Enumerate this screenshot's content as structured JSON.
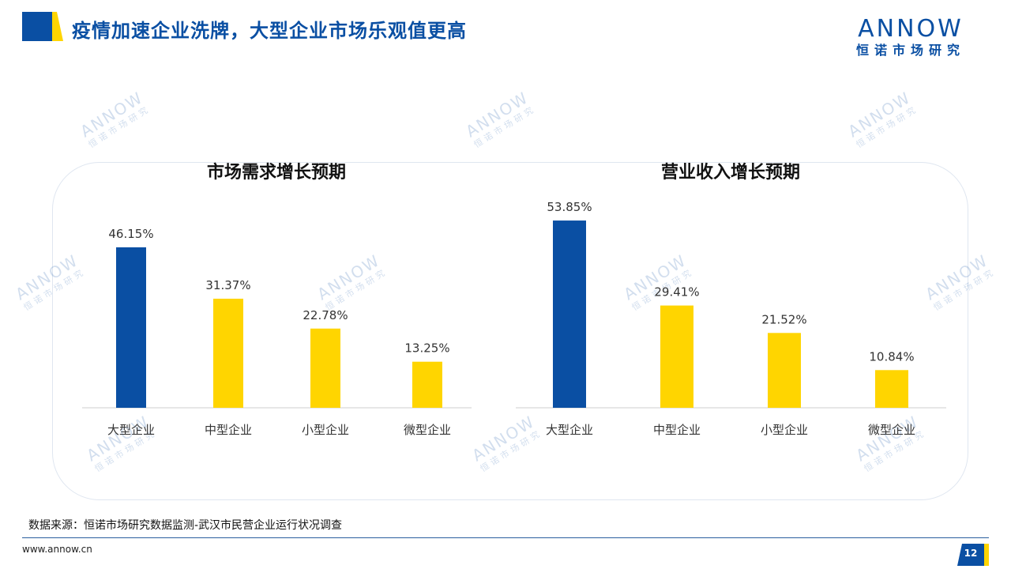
{
  "header": {
    "title": "疫情加速企业洗牌，大型企业市场乐观值更高",
    "accent_colors": [
      "#0a4fa3",
      "#ffd500"
    ]
  },
  "brand": {
    "logo_word": "ANNOW",
    "logo_sub": "恒诺市场研究"
  },
  "watermark": {
    "word": "ANNOW",
    "sub": "恒诺市场研究"
  },
  "chart_data": [
    {
      "type": "bar",
      "title": "市场需求增长预期",
      "categories": [
        "大型企业",
        "中型企业",
        "小型企业",
        "微型企业"
      ],
      "values": [
        46.15,
        31.37,
        22.78,
        13.25
      ],
      "value_labels": [
        "46.15%",
        "31.37%",
        "22.78%",
        "13.25%"
      ],
      "colors": [
        "#0a4fa3",
        "#ffd500",
        "#ffd500",
        "#ffd500"
      ],
      "ylim": [
        0,
        55
      ],
      "grid": false,
      "legend": "none"
    },
    {
      "type": "bar",
      "title": "营业收入增长预期",
      "categories": [
        "大型企业",
        "中型企业",
        "小型企业",
        "微型企业"
      ],
      "values": [
        53.85,
        29.41,
        21.52,
        10.84
      ],
      "value_labels": [
        "53.85%",
        "29.41%",
        "21.52%",
        "10.84%"
      ],
      "colors": [
        "#0a4fa3",
        "#ffd500",
        "#ffd500",
        "#ffd500"
      ],
      "ylim": [
        0,
        55
      ],
      "grid": false,
      "legend": "none"
    }
  ],
  "footer": {
    "source": "数据来源：恒诺市场研究数据监测-武汉市民营企业运行状况调查",
    "website": "www.annow.cn",
    "page_number": "12"
  }
}
